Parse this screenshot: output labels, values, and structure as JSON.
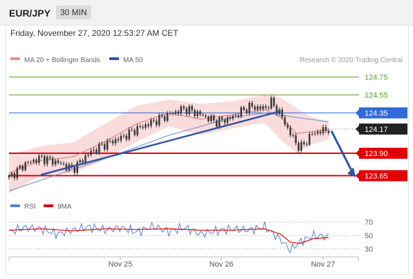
{
  "header": {
    "pair": "EUR/JPY",
    "timeframe": "30 MIN"
  },
  "datetime": "Friday, November 27, 2020 12:53:27 AM CET",
  "legend": {
    "ma20": "MA 20 + Bollinger Bands",
    "ma50": "MA 50",
    "research": "Research © 2020 Trading Central"
  },
  "rsi_legend": {
    "rsi": "RSI",
    "ma9": "9MA"
  },
  "colors": {
    "support": "#e00000",
    "resistance_green": "#5aa02c",
    "resistance_blue": "#2e6bd6",
    "candle": "#3b3b3b",
    "ma50": "#6a8cc8",
    "bollinger": "#f7c9c9",
    "ma20": "#e57373",
    "trend": "#2f55a4",
    "rsi": "#5b7fd3",
    "rsi_ma": "#e00000"
  },
  "chart_data": [
    {
      "type": "candlestick",
      "title": "EUR/JPY 30 MIN",
      "ylim": [
        123.43,
        124.9
      ],
      "x_ticks": [
        "Nov 25",
        "Nov 26",
        "Nov 27"
      ],
      "price_levels": [
        {
          "label": "124.75",
          "value": 124.75,
          "kind": "resistance",
          "color": "#5aa02c"
        },
        {
          "label": "124.55",
          "value": 124.55,
          "kind": "resistance",
          "color": "#5aa02c"
        },
        {
          "label": "124.35",
          "value": 124.35,
          "kind": "resistance",
          "color": "#2e6bd6"
        },
        {
          "label": "124.17",
          "value": 124.17,
          "kind": "last-price",
          "color": "#222222"
        },
        {
          "label": "123.90",
          "value": 123.9,
          "kind": "support",
          "color": "#e00000"
        },
        {
          "label": "123.65",
          "value": 123.65,
          "kind": "support",
          "color": "#e00000"
        }
      ],
      "series": [
        {
          "name": "Price",
          "type": "candlestick",
          "x": [
            0,
            10,
            20,
            30,
            40,
            50,
            60,
            70,
            80,
            90,
            100,
            110,
            120,
            130,
            140,
            150,
            160,
            164,
            170,
            176,
            182,
            190,
            200
          ],
          "values": [
            123.63,
            123.78,
            123.85,
            123.8,
            123.72,
            123.9,
            124.0,
            124.07,
            124.17,
            124.25,
            124.33,
            124.4,
            124.33,
            124.25,
            124.3,
            124.42,
            124.4,
            124.47,
            124.33,
            124.12,
            123.95,
            124.12,
            124.17
          ]
        },
        {
          "name": "MA 50",
          "x": [
            0,
            20,
            40,
            60,
            80,
            100,
            120,
            140,
            160,
            180,
            200
          ],
          "values": [
            123.48,
            123.6,
            123.72,
            123.84,
            123.97,
            124.1,
            124.2,
            124.3,
            124.35,
            124.3,
            124.25
          ]
        },
        {
          "name": "MA 20 + Bollinger Bands",
          "x": [
            0,
            20,
            40,
            60,
            80,
            100,
            120,
            140,
            160,
            170,
            180,
            190,
            200
          ],
          "values": [
            123.68,
            123.82,
            123.86,
            124.03,
            124.23,
            124.35,
            124.28,
            124.33,
            124.39,
            124.3,
            124.12,
            124.14,
            124.16
          ],
          "upper": [
            123.88,
            123.98,
            124.02,
            124.23,
            124.43,
            124.5,
            124.45,
            124.48,
            124.55,
            124.52,
            124.4,
            124.3,
            124.26
          ],
          "lower": [
            123.45,
            123.65,
            123.68,
            123.83,
            124.03,
            124.2,
            124.1,
            124.18,
            124.24,
            124.05,
            123.9,
            124.0,
            124.06
          ]
        }
      ]
    },
    {
      "type": "line",
      "title": "RSI",
      "ylim": [
        20,
        80
      ],
      "y_ticks": [
        70,
        50,
        30
      ],
      "series": [
        {
          "name": "RSI",
          "x": [
            0,
            10,
            20,
            30,
            40,
            50,
            60,
            70,
            80,
            90,
            100,
            110,
            120,
            130,
            140,
            150,
            160,
            170,
            176,
            182,
            190,
            200
          ],
          "values": [
            55,
            62,
            60,
            52,
            58,
            63,
            58,
            62,
            55,
            64,
            56,
            62,
            52,
            57,
            60,
            58,
            63,
            44,
            28,
            40,
            50,
            48
          ]
        },
        {
          "name": "9MA",
          "x": [
            0,
            20,
            40,
            60,
            80,
            100,
            120,
            140,
            160,
            170,
            176,
            182,
            190,
            200
          ],
          "values": [
            58,
            60,
            57,
            60,
            59,
            60,
            58,
            58,
            60,
            52,
            40,
            38,
            45,
            47
          ]
        }
      ]
    }
  ]
}
